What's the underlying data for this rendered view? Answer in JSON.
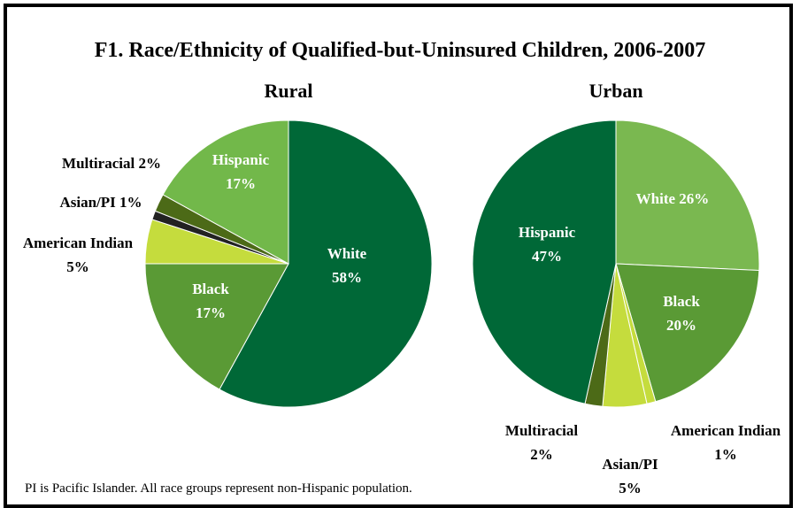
{
  "chart_data": {
    "title": "F1. Race/Ethnicity of Qualified-but-Uninsured Children, 2006-2007",
    "note": "PI is Pacific Islander.  All race groups represent non-Hispanic population.",
    "colors": {
      "White": "#006837",
      "Black": "#5a9a35",
      "American Indian": "#c5dc3d",
      "Asian/PI": "#222222",
      "Multiracial": "#4c6a17",
      "Hispanic": "#72b84a"
    },
    "charts": [
      {
        "type": "pie",
        "title": "Rural",
        "slices": [
          {
            "category": "White",
            "value": 58,
            "label_lines": [
              "White",
              "58%"
            ]
          },
          {
            "category": "Black",
            "value": 17,
            "label_lines": [
              "Black",
              "17%"
            ]
          },
          {
            "category": "American Indian",
            "value": 5,
            "label_lines": [
              "American Indian",
              "5%"
            ]
          },
          {
            "category": "Asian/PI",
            "value": 1,
            "label_lines": [
              "Asian/PI 1%"
            ]
          },
          {
            "category": "Multiracial",
            "value": 2,
            "label_lines": [
              "Multiracial 2%"
            ]
          },
          {
            "category": "Hispanic",
            "value": 17,
            "label_lines": [
              "Hispanic",
              "17%"
            ]
          }
        ]
      },
      {
        "type": "pie",
        "title": "Urban",
        "slices": [
          {
            "category": "White",
            "value": 26,
            "label_lines": [
              "White 26%"
            ],
            "color": "#7ab850"
          },
          {
            "category": "Black",
            "value": 20,
            "label_lines": [
              "Black",
              "20%"
            ]
          },
          {
            "category": "American Indian",
            "value": 1,
            "label_lines": [
              "American Indian",
              "1%"
            ]
          },
          {
            "category": "Asian/PI",
            "value": 5,
            "label_lines": [
              "Asian/PI",
              "5%"
            ],
            "color": "#c5dc3d"
          },
          {
            "category": "Multiracial",
            "value": 2,
            "label_lines": [
              "Multiracial",
              "2%"
            ]
          },
          {
            "category": "Hispanic",
            "value": 47,
            "label_lines": [
              "Hispanic",
              "47%"
            ],
            "color": "#006837"
          }
        ]
      }
    ]
  }
}
